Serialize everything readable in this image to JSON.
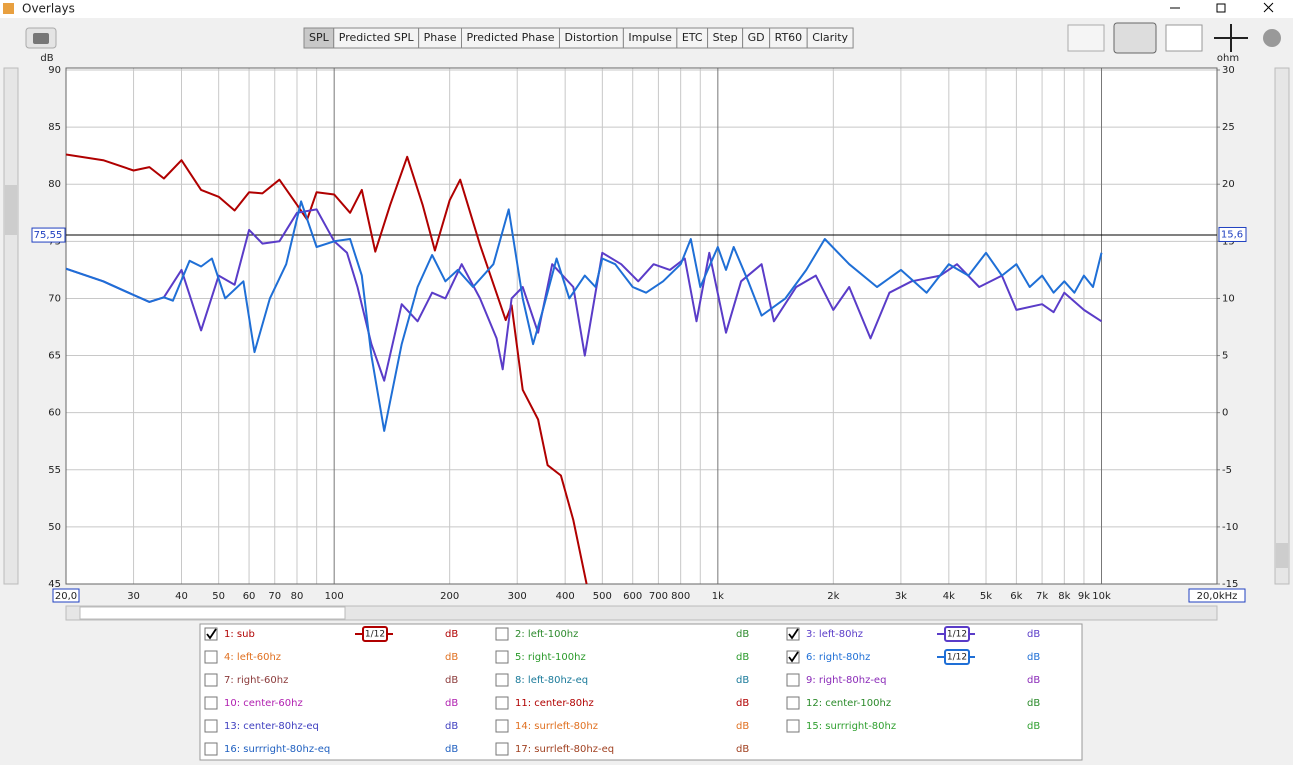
{
  "window": {
    "title": "Overlays"
  },
  "tabs": {
    "items": [
      "SPL",
      "Predicted SPL",
      "Phase",
      "Predicted Phase",
      "Distortion",
      "Impulse",
      "ETC",
      "Step",
      "GD",
      "RT60",
      "Clarity"
    ],
    "active": 0
  },
  "chart_data": {
    "type": "line",
    "xscale": "log",
    "y_label": "dB",
    "y2_label": "ohm",
    "xlim": [
      20,
      20000
    ],
    "ylim": [
      45,
      90
    ],
    "y2lim": [
      -15,
      30
    ],
    "xticks": [
      {
        "value": 20,
        "label": "20,0"
      },
      30,
      40,
      50,
      60,
      70,
      80,
      100,
      200,
      300,
      400,
      500,
      600,
      700,
      800,
      {
        "value": 1000,
        "label": "1k"
      },
      {
        "value": 2000,
        "label": "2k"
      },
      {
        "value": 3000,
        "label": "3k"
      },
      {
        "value": 4000,
        "label": "4k"
      },
      {
        "value": 5000,
        "label": "5k"
      },
      {
        "value": 6000,
        "label": "6k"
      },
      {
        "value": 7000,
        "label": "7k"
      },
      {
        "value": 8000,
        "label": "8k"
      },
      {
        "value": 9000,
        "label": "9k"
      },
      {
        "value": 10000,
        "label": "10k"
      },
      {
        "value": 20000,
        "label": "20,0kHz"
      }
    ],
    "minor_xticks": [
      90,
      900
    ],
    "yticks": [
      45,
      50,
      55,
      60,
      65,
      70,
      75,
      80,
      85,
      90
    ],
    "y2ticks": [
      -15,
      -10,
      -5,
      0,
      5,
      10,
      15,
      20,
      25,
      30
    ],
    "grid": true,
    "cursor": {
      "value": 75.55,
      "label": "75,55",
      "y2": {
        "value": 15.6,
        "label": "15,6"
      }
    },
    "series": [
      {
        "name": "1: sub",
        "color": "#b00000",
        "x": [
          20,
          25,
          30,
          33,
          36,
          40,
          45,
          50,
          55,
          60,
          65,
          72,
          80,
          85,
          90,
          100,
          110,
          118,
          128,
          140,
          155,
          170,
          183,
          200,
          213,
          240,
          280,
          290,
          310,
          340,
          360,
          390,
          420,
          455
        ],
        "values": [
          82.6,
          82.1,
          81.2,
          81.5,
          80.5,
          82.1,
          79.5,
          78.9,
          77.7,
          79.3,
          79.2,
          80.4,
          78.2,
          76.9,
          79.3,
          79.1,
          77.5,
          79.5,
          74.1,
          78.2,
          82.4,
          78.2,
          74.2,
          78.6,
          80.4,
          74.7,
          68.1,
          69.4,
          62.0,
          59.4,
          55.4,
          54.5,
          50.6,
          45.0
        ]
      },
      {
        "name": "3: left-80hz",
        "color": "#5a3cc8",
        "x": [
          20,
          25,
          30,
          33,
          36,
          40,
          45,
          50,
          55,
          60,
          65,
          72,
          80,
          90,
          100,
          108,
          115,
          125,
          135,
          150,
          165,
          180,
          195,
          215,
          240,
          265,
          275,
          290,
          310,
          340,
          370,
          420,
          450,
          500,
          560,
          620,
          680,
          750,
          820,
          880,
          950,
          1050,
          1150,
          1300,
          1400,
          1600,
          1800,
          2000,
          2200,
          2500,
          2800,
          3200,
          3800,
          4200,
          4800,
          5500,
          6000,
          7000,
          7500,
          8000,
          9000,
          10000
        ],
        "values": [
          72.6,
          71.5,
          70.3,
          69.7,
          70.1,
          72.5,
          67.2,
          72.0,
          71.2,
          76.0,
          74.8,
          75.0,
          77.5,
          77.8,
          75.0,
          74.0,
          71.0,
          66.0,
          62.8,
          69.5,
          68.0,
          70.5,
          70.0,
          73.0,
          70.0,
          66.5,
          63.8,
          70.0,
          71.0,
          67.0,
          73.0,
          71.0,
          65.0,
          74.0,
          73.0,
          71.5,
          73.0,
          72.5,
          73.5,
          68.0,
          74.0,
          67.0,
          71.5,
          73.0,
          68.0,
          71.0,
          72.0,
          69.0,
          71.0,
          66.5,
          70.5,
          71.5,
          72.0,
          73.0,
          71.0,
          72.0,
          69.0,
          69.5,
          68.8,
          70.5,
          69.0,
          68.0
        ]
      },
      {
        "name": "6: right-80hz",
        "color": "#1f6fd6",
        "x": [
          20,
          25,
          30,
          33,
          36,
          38,
          42,
          45,
          48,
          52,
          58,
          62,
          68,
          75,
          82,
          90,
          100,
          110,
          118,
          125,
          135,
          150,
          165,
          180,
          195,
          210,
          230,
          260,
          285,
          310,
          330,
          350,
          380,
          410,
          450,
          480,
          500,
          540,
          600,
          650,
          720,
          800,
          850,
          900,
          1000,
          1050,
          1100,
          1200,
          1300,
          1500,
          1700,
          1900,
          2200,
          2600,
          3000,
          3500,
          4000,
          4500,
          5000,
          5500,
          6000,
          6500,
          7000,
          7500,
          8000,
          8500,
          9000,
          9500,
          10000
        ],
        "values": [
          72.6,
          71.5,
          70.3,
          69.7,
          70.1,
          69.8,
          73.3,
          72.8,
          73.5,
          70.0,
          71.5,
          65.3,
          70.0,
          73.0,
          78.5,
          74.5,
          75.0,
          75.2,
          72.0,
          65.0,
          58.4,
          66.0,
          71.0,
          73.8,
          71.5,
          72.5,
          71.0,
          73.0,
          77.8,
          70.0,
          66.0,
          69.0,
          73.5,
          70.0,
          72.0,
          71.0,
          73.5,
          73.0,
          71.0,
          70.5,
          71.5,
          73.0,
          75.2,
          71.0,
          74.5,
          72.5,
          74.5,
          71.5,
          68.5,
          70.0,
          72.5,
          75.2,
          73.0,
          71.0,
          72.5,
          70.5,
          73.0,
          72.0,
          74.0,
          72.0,
          73.0,
          71.0,
          72.0,
          70.5,
          71.5,
          70.5,
          72.0,
          71.0,
          74.0
        ]
      }
    ]
  },
  "legend": {
    "items": [
      {
        "label": "1: sub",
        "color": "#b00000",
        "checked": true,
        "smoothing": "1/12",
        "unit": "dB"
      },
      {
        "label": "2: left-100hz",
        "color": "#2e8b2e",
        "checked": false,
        "unit": "dB"
      },
      {
        "label": "3: left-80hz",
        "color": "#5a3cc8",
        "checked": true,
        "smoothing": "1/12",
        "unit": "dB"
      },
      {
        "label": "4: left-60hz",
        "color": "#e07020",
        "checked": false,
        "unit": "dB"
      },
      {
        "label": "5: right-100hz",
        "color": "#2a9a2a",
        "checked": false,
        "unit": "dB"
      },
      {
        "label": "6: right-80hz",
        "color": "#1f6fd6",
        "checked": true,
        "smoothing": "1/12",
        "unit": "dB"
      },
      {
        "label": "7: right-60hz",
        "color": "#8b3a3a",
        "checked": false,
        "unit": "dB"
      },
      {
        "label": "8: left-80hz-eq",
        "color": "#1a7a9a",
        "checked": false,
        "unit": "dB"
      },
      {
        "label": "9: right-80hz-eq",
        "color": "#8a2ab8",
        "checked": false,
        "unit": "dB"
      },
      {
        "label": "10: center-60hz",
        "color": "#b020b0",
        "checked": false,
        "unit": "dB"
      },
      {
        "label": "11: center-80hz",
        "color": "#b00000",
        "checked": false,
        "unit": "dB"
      },
      {
        "label": "12: center-100hz",
        "color": "#2a8a2a",
        "checked": false,
        "unit": "dB"
      },
      {
        "label": "13: center-80hz-eq",
        "color": "#4040c0",
        "checked": false,
        "unit": "dB"
      },
      {
        "label": "14: surrleft-80hz",
        "color": "#e07020",
        "checked": false,
        "unit": "dB"
      },
      {
        "label": "15: surrright-80hz",
        "color": "#30a030",
        "checked": false,
        "unit": "dB"
      },
      {
        "label": "16: surrright-80hz-eq",
        "color": "#2060c0",
        "checked": false,
        "unit": "dB"
      },
      {
        "label": "17: surrleft-80hz-eq",
        "color": "#a04020",
        "checked": false,
        "unit": "dB"
      }
    ]
  }
}
